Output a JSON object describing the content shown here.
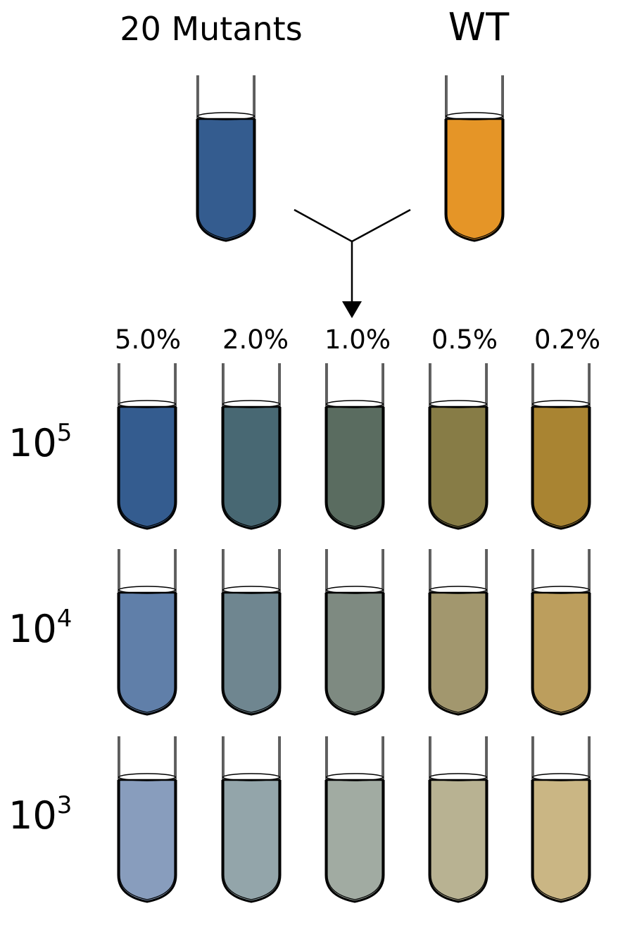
{
  "sources": [
    {
      "label": "20 Mutants",
      "color": "#345c8f"
    },
    {
      "label": "WT",
      "color": "#e59527"
    }
  ],
  "percentages": [
    "5.0%",
    "2.0%",
    "1.0%",
    "0.5%",
    "0.2%"
  ],
  "rows": [
    {
      "base": "10",
      "exp": "5",
      "colors": [
        "#345c8f",
        "#486873",
        "#5a6c60",
        "#877c46",
        "#a98432"
      ]
    },
    {
      "base": "10",
      "exp": "4",
      "colors": [
        "#607fa9",
        "#6f8690",
        "#7e8a81",
        "#a2976e",
        "#bc9e5d"
      ]
    },
    {
      "base": "10",
      "exp": "3",
      "colors": [
        "#889dbd",
        "#93a5aa",
        "#a1aba2",
        "#b8b292",
        "#cab684"
      ]
    }
  ]
}
